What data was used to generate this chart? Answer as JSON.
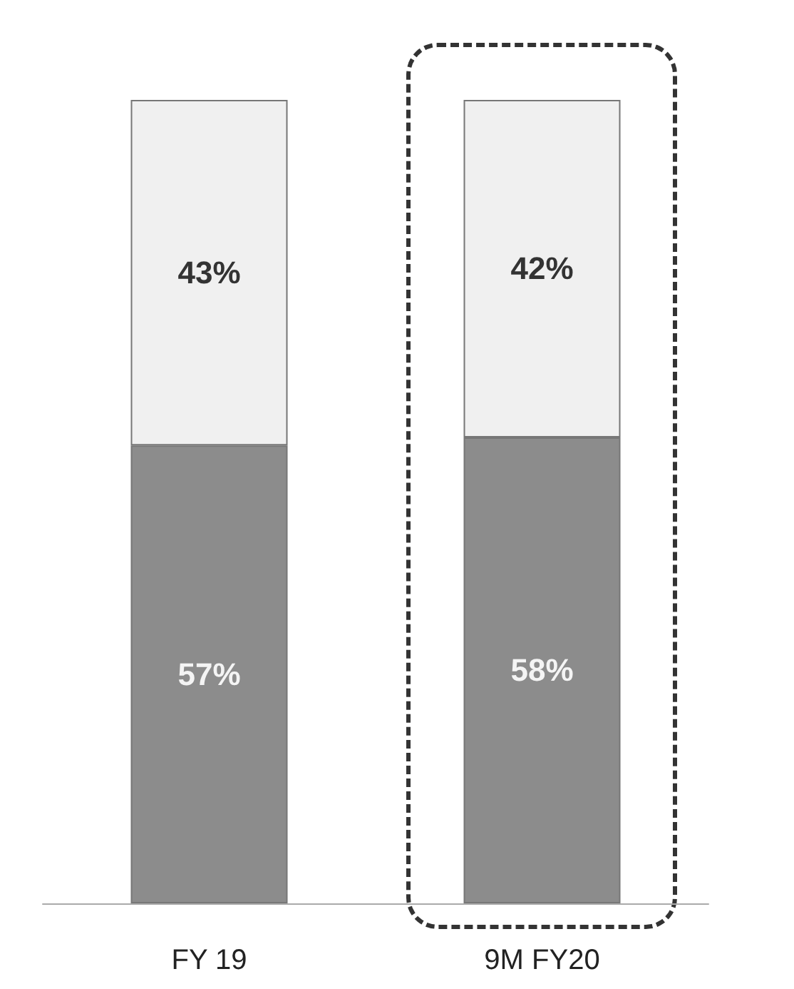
{
  "chart_data": {
    "type": "bar",
    "stacked": true,
    "categories": [
      "FY 19",
      "9M FY20"
    ],
    "series": [
      {
        "color": "#8c8c8c",
        "values": [
          57,
          58
        ],
        "value_labels": [
          "57%",
          "58%"
        ]
      },
      {
        "color": "#f0f0f0",
        "values": [
          43,
          42
        ],
        "value_labels": [
          "43%",
          "42%"
        ]
      }
    ]
  }
}
